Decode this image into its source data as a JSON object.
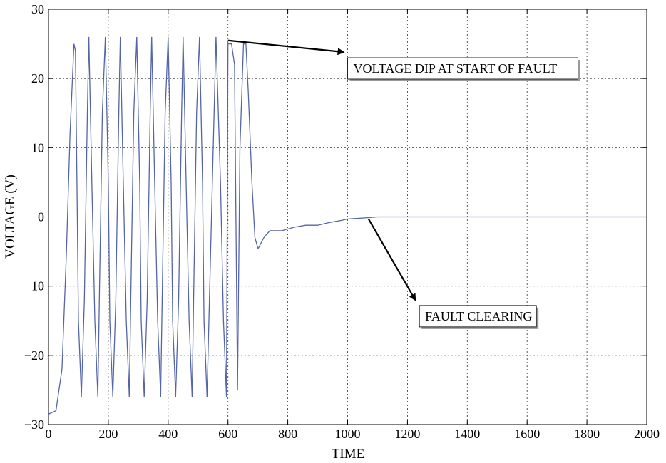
{
  "chart_data": {
    "type": "line",
    "title": "",
    "xlabel": "TIME",
    "ylabel": "VOLTAGE (V)",
    "xlim": [
      0,
      2000
    ],
    "ylim": [
      -30,
      30
    ],
    "xticks": [
      "0",
      "200",
      "400",
      "600",
      "800",
      "1000",
      "1200",
      "1400",
      "1600",
      "1800",
      "2000"
    ],
    "yticks": [
      "30",
      "20",
      "10",
      "0",
      "−10",
      "−20",
      "−30"
    ],
    "grid": true,
    "line_color": "#5565a8",
    "series": [
      {
        "x": [
          0,
          25,
          45,
          60,
          72,
          85,
          90,
          95,
          100,
          110,
          120,
          130,
          135,
          145,
          155,
          165,
          170,
          180,
          190,
          200,
          205,
          215,
          225,
          235,
          240,
          250,
          260,
          270,
          275,
          285,
          295,
          305,
          310,
          320,
          330,
          340,
          345,
          355,
          365,
          375,
          380,
          390,
          400,
          410,
          415,
          425,
          435,
          445,
          450,
          460,
          470,
          480,
          485,
          495,
          505,
          515,
          520,
          530,
          545,
          560,
          575,
          585,
          595,
          600,
          612,
          622,
          632,
          640,
          652,
          660,
          668,
          680,
          690,
          700,
          702,
          720,
          740,
          780,
          820,
          860,
          900,
          940,
          980,
          1000,
          1040,
          1070,
          1100,
          1200,
          1300,
          1400,
          1600,
          1800,
          2000
        ],
        "y": [
          -28.5,
          -28,
          -22,
          -5,
          12,
          25,
          24,
          5,
          -15,
          -26,
          -12,
          15,
          26,
          5,
          -15,
          -26,
          -12,
          15,
          26,
          5,
          -15,
          -26,
          -12,
          15,
          26,
          5,
          -15,
          -26,
          -12,
          15,
          26,
          5,
          -15,
          -26,
          -12,
          15,
          26,
          5,
          -15,
          -26,
          -12,
          15,
          26,
          5,
          -15,
          -26,
          -12,
          15,
          26,
          5,
          -15,
          -26,
          -12,
          15,
          26,
          5,
          -15,
          -26,
          0,
          26,
          5,
          -15,
          -26,
          25,
          25,
          22,
          -25,
          10,
          25,
          25,
          18,
          5,
          -3,
          -4.5,
          -4.5,
          -3,
          -2,
          -2,
          -1.5,
          -1.2,
          -1.2,
          -0.8,
          -0.5,
          -0.3,
          -0.2,
          -0.1,
          0,
          0,
          0,
          0,
          0,
          0,
          0
        ]
      }
    ],
    "annotations": [
      {
        "text": "VOLTAGE DIP AT START OF FAULT",
        "point": [
          600,
          25.5
        ],
        "box_at": [
          1000,
          23
        ]
      },
      {
        "text": "FAULT CLEARING",
        "point": [
          1070,
          -0.3
        ],
        "box_at": [
          1240,
          -12.8
        ]
      }
    ]
  }
}
